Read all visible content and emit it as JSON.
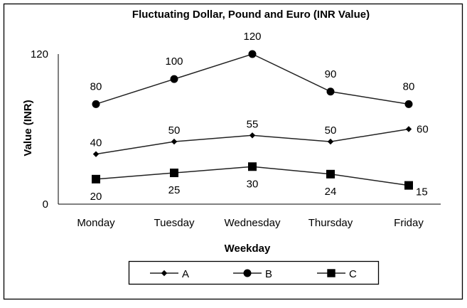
{
  "chart_data": {
    "type": "line",
    "title": "Fluctuating Dollar, Pound and Euro (INR Value)",
    "xlabel": "Weekday",
    "ylabel": "Value (INR)",
    "categories": [
      "Monday",
      "Tuesday",
      "Wednesday",
      "Thursday",
      "Friday"
    ],
    "ylim": [
      0,
      120
    ],
    "yticks": [
      "0",
      "120"
    ],
    "grid": false,
    "legend_position": "bottom",
    "series": [
      {
        "name": "A",
        "marker": "diamond",
        "values": [
          40,
          50,
          55,
          50,
          60
        ],
        "labels": [
          "40",
          "50",
          "55",
          "50",
          "60"
        ],
        "label_position": "above"
      },
      {
        "name": "B",
        "marker": "circle",
        "values": [
          80,
          100,
          120,
          90,
          80
        ],
        "labels": [
          "80",
          "100",
          "120",
          "90",
          "80"
        ],
        "label_position": "above"
      },
      {
        "name": "C",
        "marker": "square",
        "values": [
          20,
          25,
          30,
          24,
          15
        ],
        "labels": [
          "20",
          "25",
          "30",
          "24",
          "15"
        ],
        "label_position": "below"
      }
    ],
    "colors": {
      "line": "#222222",
      "marker": "#000000",
      "border": "#000000"
    }
  }
}
